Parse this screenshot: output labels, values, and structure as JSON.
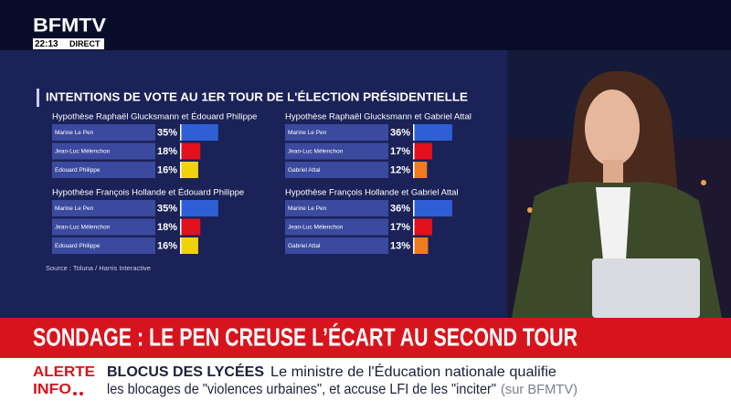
{
  "header": {
    "logo": "BFMTV",
    "time": "22:13",
    "live": "DIRECT"
  },
  "graphic": {
    "title": "INTENTIONS DE VOTE AU 1ER TOUR DE L'ÉLECTION PRÉSIDENTIELLE",
    "source": "Source : Toluna / Harris Interactive"
  },
  "chart_data": [
    {
      "type": "bar",
      "title": "Hypothèse Raphaël Glucksmann et Édouard Philippe",
      "categories": [
        "Marine Le Pen",
        "Jean-Luc Mélenchon",
        "Edouard Philippe"
      ],
      "values": [
        35,
        18,
        16
      ],
      "value_labels": [
        "35%",
        "18%",
        "16%"
      ],
      "colors": [
        "#2f5fd6",
        "#e3101e",
        "#f0d20a"
      ]
    },
    {
      "type": "bar",
      "title": "Hypothèse Raphaël Glucksmann et Gabriel Attal",
      "categories": [
        "Marine Le Pen",
        "Jean-Luc Mélenchon",
        "Gabriel Attal"
      ],
      "values": [
        36,
        17,
        12
      ],
      "value_labels": [
        "36%",
        "17%",
        "12%"
      ],
      "colors": [
        "#2f5fd6",
        "#e3101e",
        "#f07a1e"
      ]
    },
    {
      "type": "bar",
      "title": "Hypothèse François Hollande et Édouard Philippe",
      "categories": [
        "Marine Le Pen",
        "Jean-Luc Mélenchon",
        "Edouard Philippe"
      ],
      "values": [
        35,
        18,
        16
      ],
      "value_labels": [
        "35%",
        "18%",
        "16%"
      ],
      "colors": [
        "#2f5fd6",
        "#e3101e",
        "#f0d20a"
      ]
    },
    {
      "type": "bar",
      "title": "Hypothèse François Hollande et Gabriel Attal",
      "categories": [
        "Marine Le Pen",
        "Jean-Luc Mélenchon",
        "Gabriel Attal"
      ],
      "values": [
        36,
        17,
        13
      ],
      "value_labels": [
        "36%",
        "17%",
        "13%"
      ],
      "colors": [
        "#2f5fd6",
        "#e3101e",
        "#f07a1e"
      ]
    }
  ],
  "banner": {
    "headline": "SONDAGE : LE PEN CREUSE L’ÉCART AU SECOND TOUR"
  },
  "ticker": {
    "label_1": "ALERTE",
    "label_2": "INFO",
    "topic": "BLOCUS DES LYCÉES",
    "line_1": "Le ministre de l'Éducation nationale qualifie",
    "line_2": "les blocages de \"violences urbaines\", et accuse LFI de les \"inciter\"",
    "source": "(sur BFMTV)"
  }
}
